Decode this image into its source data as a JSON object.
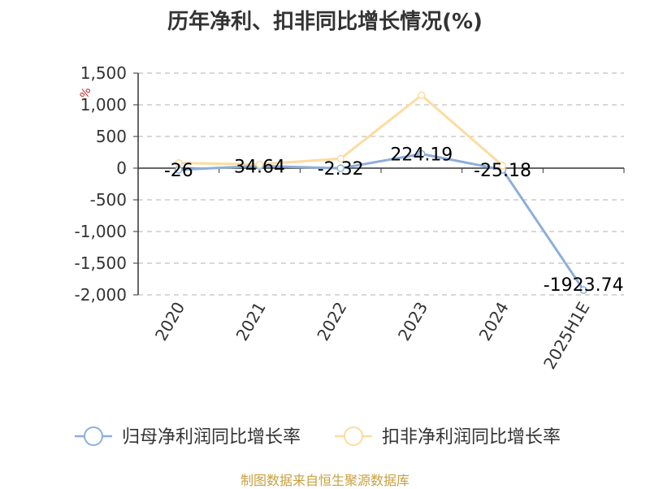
{
  "chart_data": {
    "type": "line",
    "title": "历年净利、扣非同比增长情况(%)",
    "ylabel": "%",
    "categories": [
      "2020",
      "2021",
      "2022",
      "2023",
      "2024",
      "2025H1E"
    ],
    "ylim": [
      -2000,
      1500
    ],
    "yticks": [
      1500,
      1000,
      500,
      0,
      -500,
      -1000,
      -1500,
      -2000
    ],
    "ytick_labels": [
      "1,500",
      "1,000",
      "500",
      "0",
      "-500",
      "-1,000",
      "-1,500",
      "-2,000"
    ],
    "grid": true,
    "legend_position": "bottom",
    "series": [
      {
        "name": "归母净利润同比增长率",
        "color": "#8eaedb",
        "values": [
          -26,
          34.64,
          -2.32,
          224.19,
          -25.18,
          -1923.74
        ],
        "labels": [
          "-26",
          "34.64",
          "-2.32",
          "224.19",
          "-25.18",
          "-1923.74"
        ]
      },
      {
        "name": "扣非净利润同比增长率",
        "color": "#fcdca0",
        "values": [
          80,
          60,
          150,
          1150,
          40,
          null
        ],
        "labels": []
      }
    ]
  },
  "source": "制图数据来自恒生聚源数据库"
}
